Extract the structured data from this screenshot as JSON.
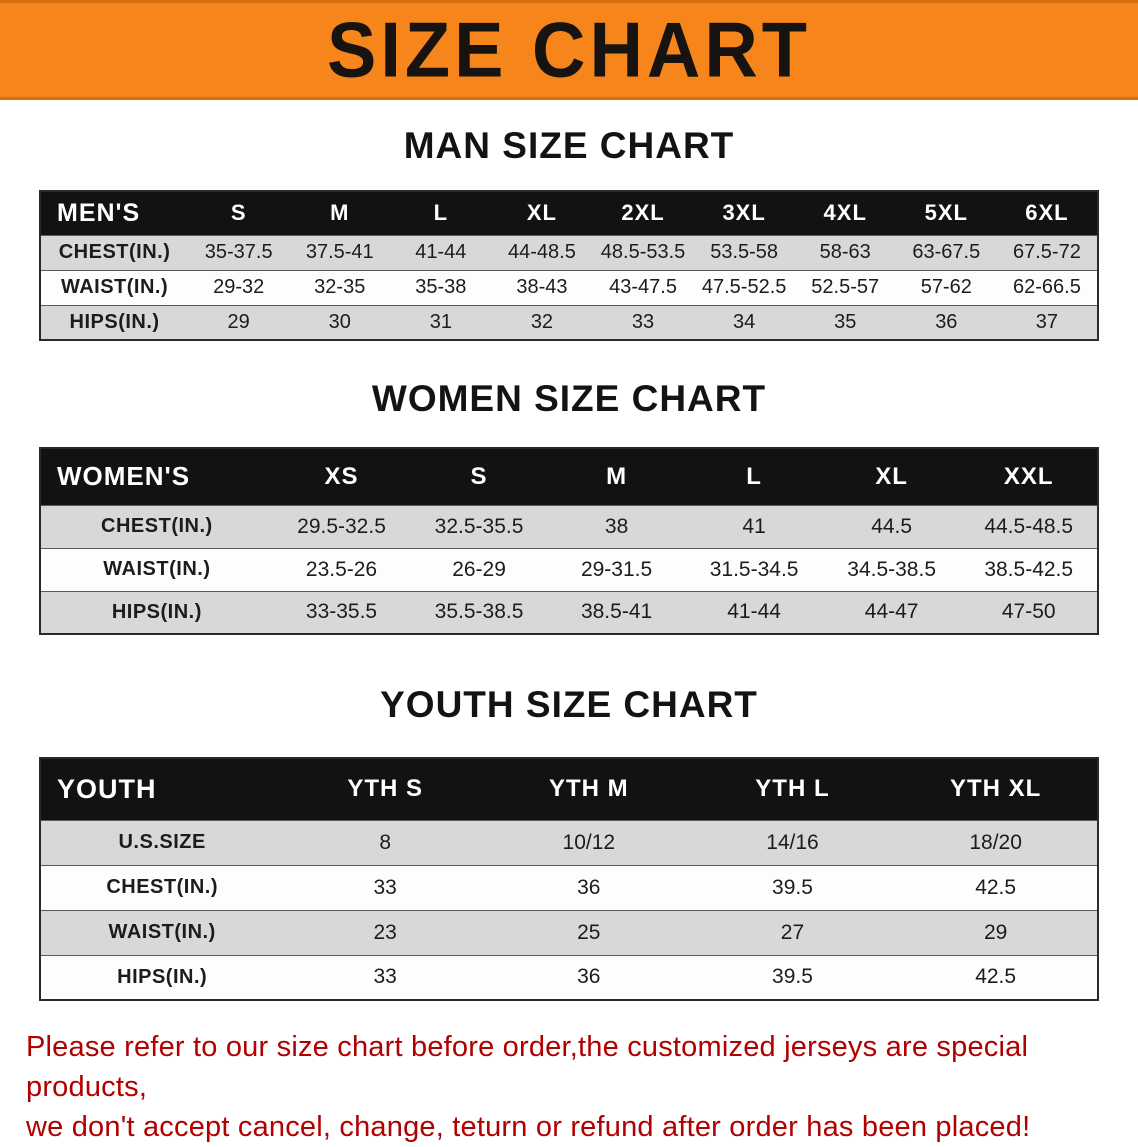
{
  "banner": {
    "title": "SIZE CHART",
    "bg_color": "#f6861c",
    "text_color": "#171310"
  },
  "sections": [
    {
      "heading": "MAN SIZE CHART",
      "corner_label": "MEN'S",
      "columns": [
        "S",
        "M",
        "L",
        "XL",
        "2XL",
        "3XL",
        "4XL",
        "5XL",
        "6XL"
      ],
      "rows": [
        {
          "label": "CHEST(IN.)",
          "values": [
            "35-37.5",
            "37.5-41",
            "41-44",
            "44-48.5",
            "48.5-53.5",
            "53.5-58",
            "58-63",
            "63-67.5",
            "67.5-72"
          ]
        },
        {
          "label": "WAIST(IN.)",
          "values": [
            "29-32",
            "32-35",
            "35-38",
            "38-43",
            "43-47.5",
            "47.5-52.5",
            "52.5-57",
            "57-62",
            "62-66.5"
          ]
        },
        {
          "label": "HIPS(IN.)",
          "values": [
            "29",
            "30",
            "31",
            "32",
            "33",
            "34",
            "35",
            "36",
            "37"
          ]
        }
      ]
    },
    {
      "heading": "WOMEN SIZE CHART",
      "corner_label": "WOMEN'S",
      "columns": [
        "XS",
        "S",
        "M",
        "L",
        "XL",
        "XXL"
      ],
      "rows": [
        {
          "label": "CHEST(IN.)",
          "values": [
            "29.5-32.5",
            "32.5-35.5",
            "38",
            "41",
            "44.5",
            "44.5-48.5"
          ]
        },
        {
          "label": "WAIST(IN.)",
          "values": [
            "23.5-26",
            "26-29",
            "29-31.5",
            "31.5-34.5",
            "34.5-38.5",
            "38.5-42.5"
          ]
        },
        {
          "label": "HIPS(IN.)",
          "values": [
            "33-35.5",
            "35.5-38.5",
            "38.5-41",
            "41-44",
            "44-47",
            "47-50"
          ]
        }
      ]
    },
    {
      "heading": "YOUTH SIZE CHART",
      "corner_label": "YOUTH",
      "columns": [
        "YTH S",
        "YTH M",
        "YTH L",
        "YTH XL"
      ],
      "rows": [
        {
          "label": "U.S.SIZE",
          "values": [
            "8",
            "10/12",
            "14/16",
            "18/20"
          ]
        },
        {
          "label": "CHEST(IN.)",
          "values": [
            "33",
            "36",
            "39.5",
            "42.5"
          ]
        },
        {
          "label": "WAIST(IN.)",
          "values": [
            "23",
            "25",
            "27",
            "29"
          ]
        },
        {
          "label": "HIPS(IN.)",
          "values": [
            "33",
            "36",
            "39.5",
            "42.5"
          ]
        }
      ]
    }
  ],
  "disclaimer": {
    "color": "#b20000",
    "lines": [
      "Please refer to our size chart before order,the customized jerseys are special products,",
      "we don't accept cancel, change, teturn or refund after order has been placed!"
    ]
  }
}
